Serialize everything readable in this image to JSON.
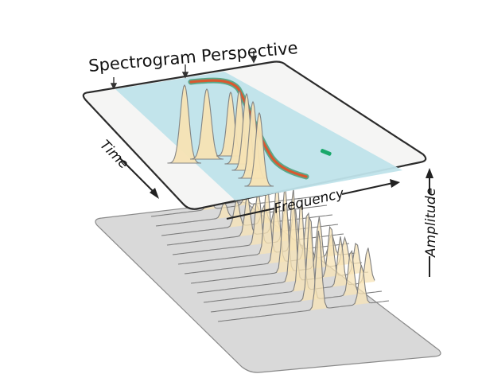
{
  "diagram": {
    "title": "Spectrogram Perspective",
    "labels": {
      "time": "Time",
      "frequency": "Frequency",
      "amplitude": "Amplitude"
    },
    "colors": {
      "top_plane_fill": "#f5f5f4",
      "band_fill": "#bfe3ea",
      "trace_outer": "#5aa88a",
      "trace_inner": "#d9582f",
      "marker": "#1aa86a",
      "peak_fill": "#f7e3b5",
      "peak_stroke": "#7f7f7f",
      "floor_fill": "#d9d9d9"
    }
  }
}
